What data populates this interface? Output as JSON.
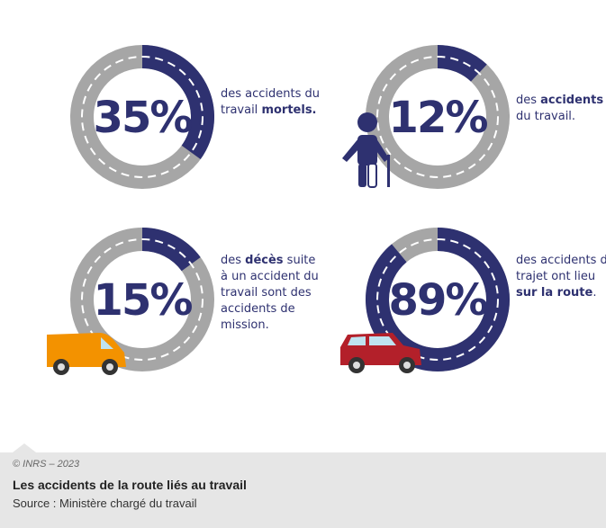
{
  "cards": [
    {
      "value": 35,
      "value_label": "35%",
      "description": [
        {
          "text": "des accidents du travail ",
          "bold": false
        },
        {
          "text": "mortels.",
          "bold": true
        }
      ]
    },
    {
      "value": 12,
      "value_label": "12%",
      "description": [
        {
          "text": "des ",
          "bold": false
        },
        {
          "text": "accidents",
          "bold": true
        },
        {
          "text": " du travail.",
          "bold": false
        }
      ]
    },
    {
      "value": 15,
      "value_label": "15%",
      "description": [
        {
          "text": "des ",
          "bold": false
        },
        {
          "text": "décès",
          "bold": true
        },
        {
          "text": " suite à un accident du travail sont des accidents de mission.",
          "bold": false
        }
      ]
    },
    {
      "value": 89,
      "value_label": "89%",
      "description": [
        {
          "text": "des accidents de trajet ont lieu ",
          "bold": false
        },
        {
          "text": "sur la route",
          "bold": true
        },
        {
          "text": ".",
          "bold": false
        }
      ]
    }
  ],
  "colors": {
    "track": "#a6a6a6",
    "fill": "#2e3170"
  },
  "footer": {
    "credit": "© INRS – 2023",
    "title": "Les accidents de la route liés au travail",
    "source": "Source : Ministère chargé du travail"
  }
}
